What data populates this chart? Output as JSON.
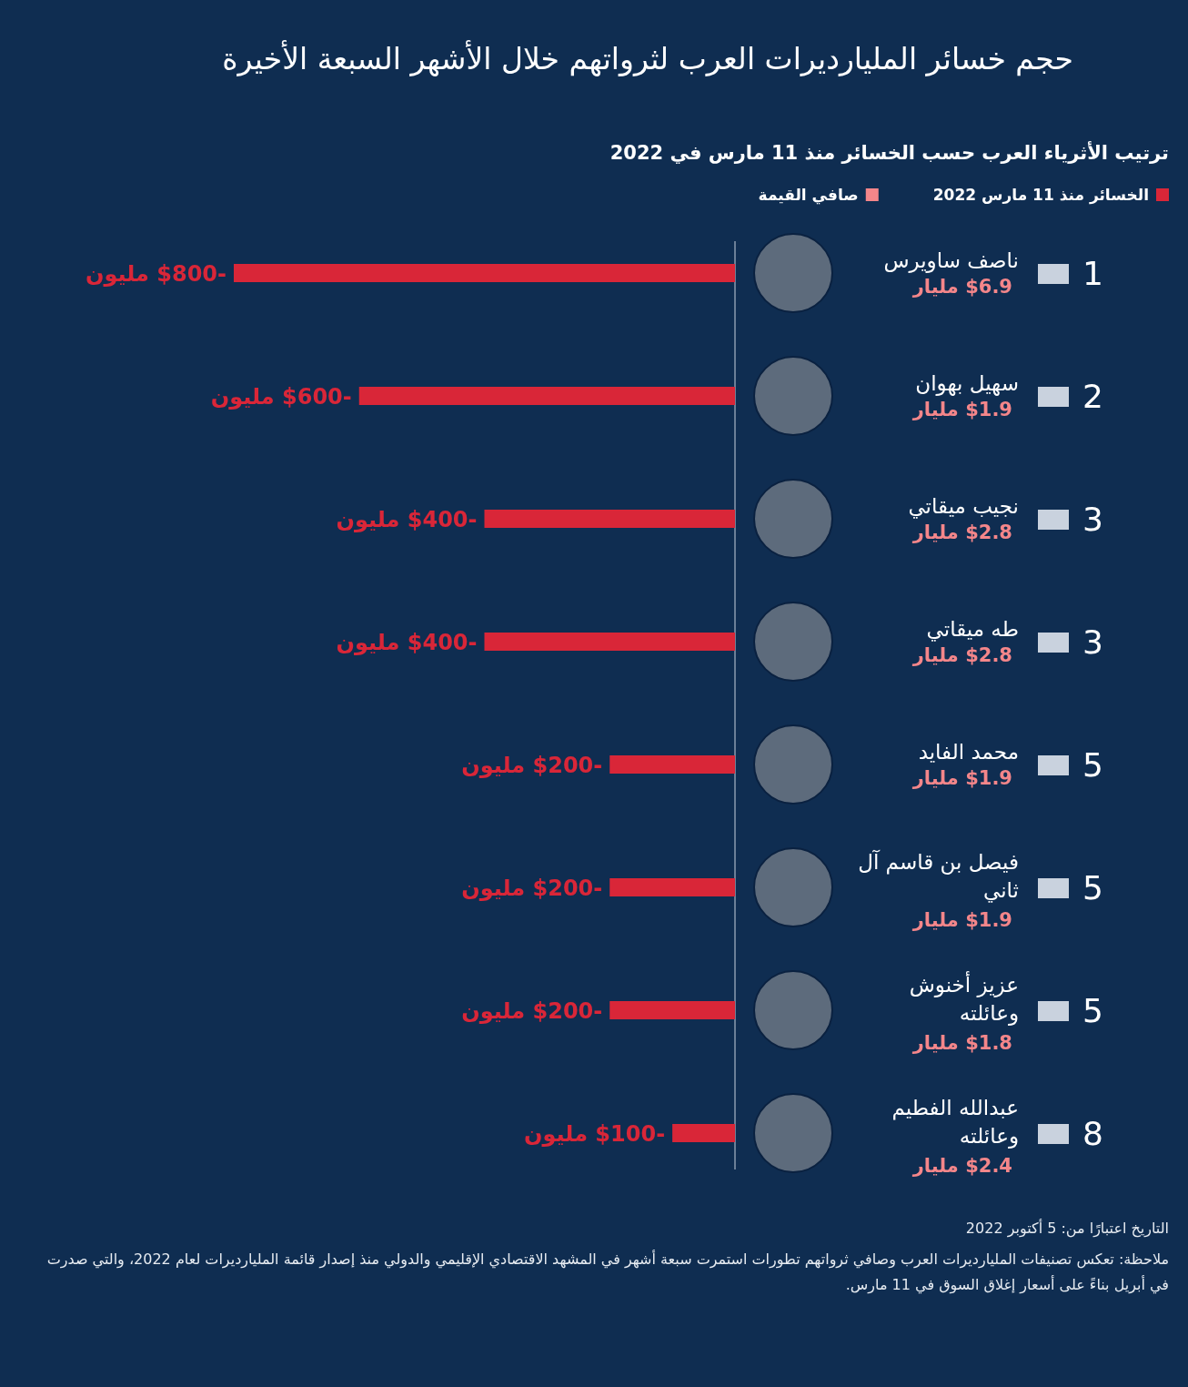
{
  "chart_data": {
    "type": "bar",
    "orientation": "horizontal",
    "title": "حجم خسائر المليارديرات العرب لثرواتهم خلال الأشهر السبعة الأخيرة",
    "subtitle": "ترتيب الأثرياء العرب حسب الخسائر منذ 11 مارس في 2022",
    "categories": [
      "ناصف ساويرس",
      "سهيل بهوان",
      "نجيب ميقاتي",
      "طه ميقاتي",
      "محمد الفايد",
      "فيصل بن قاسم آل ثاني",
      "عزيز أخنوش وعائلته",
      "عبدالله الفطيم وعائلته"
    ],
    "series": [
      {
        "name": "الخسائر منذ 11 مارس 2022",
        "color": "#d92638",
        "values": [
          -800,
          -600,
          -400,
          -400,
          -200,
          -200,
          -200,
          -100
        ],
        "value_labels": [
          "-$800 مليون",
          "-$600 مليون",
          "-$400 مليون",
          "-$400 مليون",
          "-$200 مليون",
          "-$200 مليون",
          "-$200 مليون",
          "-$100 مليون"
        ]
      },
      {
        "name": "صافي القيمة",
        "type": "other",
        "color": "#f4868a",
        "values": [
          null,
          null,
          null,
          null,
          null,
          null,
          null,
          null
        ]
      }
    ],
    "legend": "top right",
    "annotations": [
      "1",
      "2",
      "3",
      "3",
      "5",
      "5",
      "5",
      "8",
      "$6.9 مليار",
      "$1.9 مليار",
      "$2.8 مليار",
      "$2.8 مليار",
      "$1.9 مليار",
      "$1.9 مليار",
      "$1.8 مليار",
      "$2.4 مليار",
      "التاريخ اعتبارًا من: 5 أكتوبر 2022",
      "ملاحظة: تعكس تصنيفات المليارديرات العرب وصافي ثرواتهم تطورات استمرت سبعة أشهر في المشهد الاقتصادي الإقليمي والدولي منذ إصدار قائمة المليارديرات لعام 2022، والتي صدرت في أبريل بناءً على أسعار إغلاق السوق في 11 مارس."
    ]
  }
}
